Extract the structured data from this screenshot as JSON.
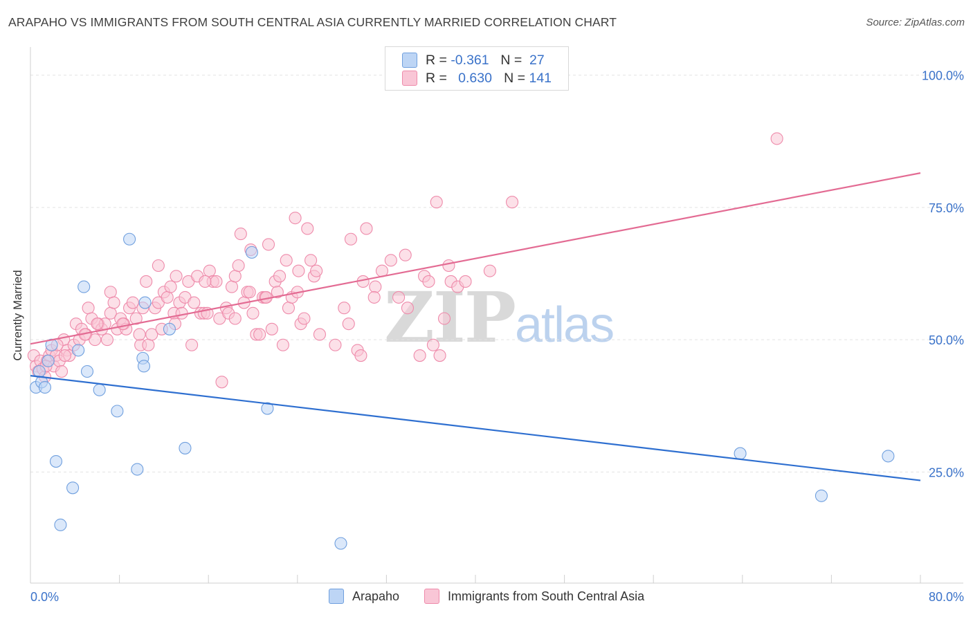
{
  "title": "ARAPAHO VS IMMIGRANTS FROM SOUTH CENTRAL ASIA CURRENTLY MARRIED CORRELATION CHART",
  "source": "Source: ZipAtlas.com",
  "watermark": {
    "zip": "ZIP",
    "atlas": "atlas"
  },
  "legend_top": {
    "r_label": "R =",
    "n_label": "N =",
    "series": [
      {
        "r": "-0.361",
        "n": "27",
        "color": "#bdd5f5",
        "border": "#6f9fde"
      },
      {
        "r": "0.630",
        "n": "141",
        "color": "#f9c6d6",
        "border": "#ee8aaa"
      }
    ]
  },
  "chart_data": {
    "type": "scatter",
    "title": "ARAPAHO VS IMMIGRANTS FROM SOUTH CENTRAL ASIA CURRENTLY MARRIED CORRELATION CHART",
    "xlabel": "",
    "ylabel": "Currently Married",
    "xlim": [
      0,
      80
    ],
    "ylim": [
      4,
      104
    ],
    "x_tick_labels": [
      "0.0%",
      "80.0%"
    ],
    "y_ticks": [
      25,
      50,
      75,
      100
    ],
    "y_tick_labels": [
      "25.0%",
      "50.0%",
      "75.0%",
      "100.0%"
    ],
    "grid": true,
    "legend_position": "bottom",
    "series": [
      {
        "name": "Arapaho",
        "color": "#6f9fde",
        "fill": "#bdd5f5",
        "line_color": "#2e6fd0",
        "trend": [
          [
            0,
            43.2
          ],
          [
            80,
            23.4
          ]
        ],
        "points": [
          [
            0.5,
            41
          ],
          [
            1,
            42
          ],
          [
            1.3,
            41
          ],
          [
            1.6,
            46
          ],
          [
            1.9,
            49
          ],
          [
            2.3,
            27
          ],
          [
            3.8,
            22
          ],
          [
            2.7,
            15
          ],
          [
            4.3,
            48
          ],
          [
            5.1,
            44
          ],
          [
            6.2,
            40.5
          ],
          [
            7.8,
            36.5
          ],
          [
            8.9,
            69
          ],
          [
            9.6,
            25.5
          ],
          [
            10.1,
            46.5
          ],
          [
            10.2,
            45
          ],
          [
            10.3,
            57
          ],
          [
            12.5,
            52
          ],
          [
            4.8,
            60
          ],
          [
            13.9,
            29.5
          ],
          [
            19.9,
            66.5
          ],
          [
            21.3,
            37
          ],
          [
            27.9,
            11.5
          ],
          [
            63.8,
            28.5
          ],
          [
            71.1,
            20.5
          ],
          [
            77.1,
            28
          ],
          [
            0.8,
            44
          ]
        ]
      },
      {
        "name": "Immigrants from South Central Asia",
        "color": "#ee8aaa",
        "fill": "#f9c6d6",
        "line_color": "#e36b93",
        "trend": [
          [
            0,
            49.2
          ],
          [
            80,
            81.5
          ]
        ],
        "points": [
          [
            0.3,
            47
          ],
          [
            0.5,
            45
          ],
          [
            0.7,
            44
          ],
          [
            0.9,
            46
          ],
          [
            1.1,
            44.5
          ],
          [
            1.3,
            43
          ],
          [
            1.5,
            46
          ],
          [
            1.7,
            47
          ],
          [
            1.9,
            48
          ],
          [
            2.1,
            45
          ],
          [
            2.3,
            47
          ],
          [
            2.6,
            46
          ],
          [
            2.8,
            44
          ],
          [
            3.0,
            50
          ],
          [
            3.3,
            48
          ],
          [
            3.5,
            47
          ],
          [
            3.9,
            49
          ],
          [
            4.1,
            53
          ],
          [
            4.4,
            50
          ],
          [
            4.6,
            52
          ],
          [
            5.0,
            51
          ],
          [
            5.2,
            56
          ],
          [
            5.5,
            54
          ],
          [
            5.8,
            50
          ],
          [
            6.1,
            53
          ],
          [
            6.4,
            52
          ],
          [
            6.7,
            53
          ],
          [
            6.9,
            50
          ],
          [
            7.2,
            55
          ],
          [
            7.2,
            59
          ],
          [
            7.5,
            57
          ],
          [
            7.8,
            52
          ],
          [
            8.1,
            54
          ],
          [
            8.4,
            53
          ],
          [
            8.6,
            52
          ],
          [
            8.9,
            56
          ],
          [
            9.2,
            57
          ],
          [
            9.5,
            54
          ],
          [
            9.9,
            49
          ],
          [
            10.1,
            56
          ],
          [
            10.4,
            61
          ],
          [
            10.6,
            49
          ],
          [
            10.9,
            51
          ],
          [
            11.2,
            56
          ],
          [
            11.5,
            57
          ],
          [
            11.8,
            52
          ],
          [
            12.0,
            59
          ],
          [
            12.3,
            58
          ],
          [
            12.6,
            60
          ],
          [
            12.9,
            55
          ],
          [
            13.1,
            62
          ],
          [
            13.4,
            57
          ],
          [
            13.6,
            55
          ],
          [
            13.9,
            58
          ],
          [
            14.2,
            61
          ],
          [
            14.5,
            49
          ],
          [
            14.7,
            57
          ],
          [
            15.0,
            62
          ],
          [
            15.3,
            55
          ],
          [
            15.6,
            55
          ],
          [
            15.9,
            55
          ],
          [
            16.1,
            63
          ],
          [
            16.4,
            61
          ],
          [
            16.7,
            61
          ],
          [
            17.0,
            54
          ],
          [
            17.2,
            42
          ],
          [
            17.6,
            56
          ],
          [
            17.8,
            55
          ],
          [
            18.1,
            60
          ],
          [
            18.4,
            62
          ],
          [
            18.7,
            64
          ],
          [
            18.9,
            70
          ],
          [
            19.2,
            57
          ],
          [
            19.5,
            59
          ],
          [
            19.8,
            67
          ],
          [
            20.0,
            55
          ],
          [
            20.3,
            51
          ],
          [
            20.6,
            51
          ],
          [
            20.9,
            58
          ],
          [
            21.1,
            58
          ],
          [
            21.4,
            68
          ],
          [
            21.7,
            52
          ],
          [
            22.0,
            61
          ],
          [
            22.2,
            59
          ],
          [
            22.7,
            49
          ],
          [
            23.0,
            65
          ],
          [
            23.2,
            56
          ],
          [
            23.5,
            58
          ],
          [
            23.8,
            73
          ],
          [
            24.1,
            63
          ],
          [
            24.3,
            53
          ],
          [
            24.6,
            54
          ],
          [
            24.9,
            71
          ],
          [
            25.2,
            65
          ],
          [
            25.5,
            62
          ],
          [
            25.7,
            63
          ],
          [
            26.0,
            51
          ],
          [
            27.4,
            49
          ],
          [
            28.2,
            56
          ],
          [
            28.8,
            69
          ],
          [
            29.4,
            48
          ],
          [
            29.7,
            47
          ],
          [
            29.9,
            61
          ],
          [
            30.2,
            71
          ],
          [
            31.0,
            60
          ],
          [
            31.6,
            63
          ],
          [
            32.4,
            65
          ],
          [
            33.1,
            58
          ],
          [
            33.7,
            66
          ],
          [
            33.9,
            56
          ],
          [
            35.0,
            47
          ],
          [
            35.4,
            62
          ],
          [
            35.8,
            61
          ],
          [
            36.2,
            49
          ],
          [
            36.5,
            76
          ],
          [
            36.8,
            47
          ],
          [
            37.2,
            54
          ],
          [
            37.6,
            64
          ],
          [
            37.8,
            61
          ],
          [
            38.4,
            60
          ],
          [
            39.1,
            61
          ],
          [
            41.3,
            63
          ],
          [
            43.3,
            76
          ],
          [
            67.1,
            88
          ],
          [
            19.7,
            59
          ],
          [
            22.4,
            62
          ],
          [
            24.0,
            59
          ],
          [
            11.5,
            64
          ],
          [
            15.7,
            61
          ],
          [
            21.2,
            58
          ],
          [
            9.8,
            51
          ],
          [
            8.3,
            53
          ],
          [
            4.9,
            51
          ],
          [
            3.1,
            47
          ],
          [
            2.4,
            49
          ],
          [
            1.4,
            45
          ],
          [
            6.0,
            53
          ],
          [
            13.0,
            53
          ],
          [
            18.4,
            54
          ],
          [
            28.6,
            53
          ],
          [
            30.9,
            58
          ]
        ]
      }
    ]
  },
  "legend_bottom": [
    "Arapaho",
    "Immigrants from South Central Asia"
  ]
}
